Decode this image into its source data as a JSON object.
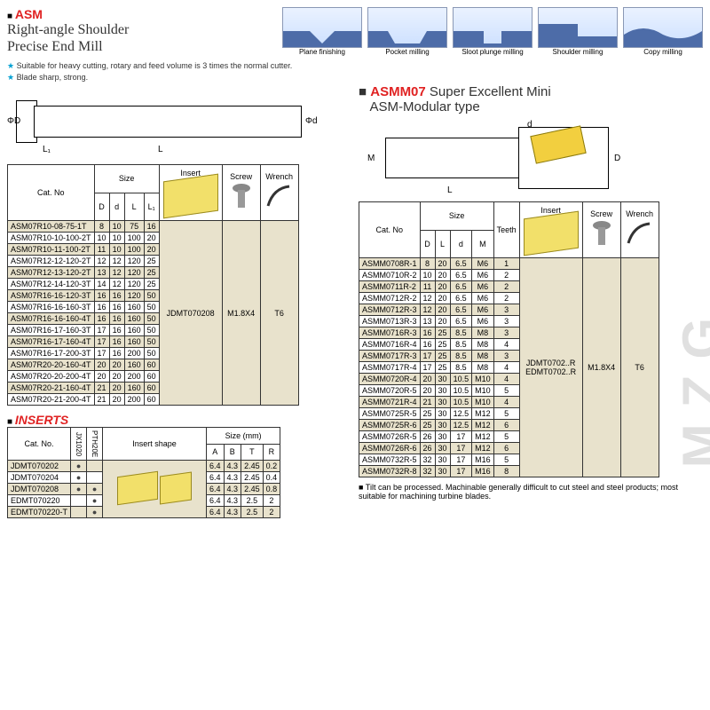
{
  "header": {
    "asm": "ASM",
    "title_l1": "Right-angle Shoulder",
    "title_l2": "Precise End Mill",
    "star1": "Suitable for heavy cutting, rotary and feed volume is 3 times the normal cutter.",
    "star2": "Blade sharp, strong."
  },
  "icons": [
    {
      "label": "Plane finishing"
    },
    {
      "label": "Pocket milling"
    },
    {
      "label": "Sloot plunge milling"
    },
    {
      "label": "Shoulder milling"
    },
    {
      "label": "Copy milling"
    }
  ],
  "left_draw": {
    "phiD": "ΦD",
    "L1": "L₁",
    "L": "L",
    "phid": "Φd"
  },
  "left_table": {
    "headers": {
      "cat": "Cat. No",
      "size": "Size",
      "D": "D",
      "d": "d",
      "L": "L",
      "L1": "L₁",
      "insert": "Insert",
      "screw": "Screw",
      "wrench": "Wrench"
    },
    "rows": [
      {
        "cat": "ASM07R10-08-75-1T",
        "D": "8",
        "d": "10",
        "L": "75",
        "L1": "16"
      },
      {
        "cat": "ASM07R10-10-100-2T",
        "D": "10",
        "d": "10",
        "L": "100",
        "L1": "20"
      },
      {
        "cat": "ASM07R10-11-100-2T",
        "D": "11",
        "d": "10",
        "L": "100",
        "L1": "20"
      },
      {
        "cat": "ASM07R12-12-120-2T",
        "D": "12",
        "d": "12",
        "L": "120",
        "L1": "25"
      },
      {
        "cat": "ASM07R12-13-120-2T",
        "D": "13",
        "d": "12",
        "L": "120",
        "L1": "25"
      },
      {
        "cat": "ASM07R12-14-120-3T",
        "D": "14",
        "d": "12",
        "L": "120",
        "L1": "25"
      },
      {
        "cat": "ASM07R16-16-120-3T",
        "D": "16",
        "d": "16",
        "L": "120",
        "L1": "50"
      },
      {
        "cat": "ASM07R16-16-160-3T",
        "D": "16",
        "d": "16",
        "L": "160",
        "L1": "50"
      },
      {
        "cat": "ASM07R16-16-160-4T",
        "D": "16",
        "d": "16",
        "L": "160",
        "L1": "50"
      },
      {
        "cat": "ASM07R16-17-160-3T",
        "D": "17",
        "d": "16",
        "L": "160",
        "L1": "50"
      },
      {
        "cat": "ASM07R16-17-160-4T",
        "D": "17",
        "d": "16",
        "L": "160",
        "L1": "50"
      },
      {
        "cat": "ASM07R16-17-200-3T",
        "D": "17",
        "d": "16",
        "L": "200",
        "L1": "50"
      },
      {
        "cat": "ASM07R20-20-160-4T",
        "D": "20",
        "d": "20",
        "L": "160",
        "L1": "60"
      },
      {
        "cat": "ASM07R20-20-200-4T",
        "D": "20",
        "d": "20",
        "L": "200",
        "L1": "60"
      },
      {
        "cat": "ASM07R20-21-160-4T",
        "D": "21",
        "d": "20",
        "L": "160",
        "L1": "60"
      },
      {
        "cat": "ASM07R20-21-200-4T",
        "D": "21",
        "d": "20",
        "L": "200",
        "L1": "60"
      }
    ],
    "insert": "JDMT070208",
    "screw": "M1.8X4",
    "wrench": "T6"
  },
  "inserts": {
    "title": "INSERTS",
    "headers": {
      "cat": "Cat. No.",
      "c1": "JX1020",
      "c2": "PTH20E",
      "shape": "Insert shape",
      "size": "Size (mm)",
      "A": "A",
      "B": "B",
      "T": "T",
      "R": "R"
    },
    "rows": [
      {
        "cat": "JDMT070202",
        "c1": "●",
        "c2": "",
        "A": "6.4",
        "B": "4.3",
        "T": "2.45",
        "R": "0.2"
      },
      {
        "cat": "JDMT070204",
        "c1": "●",
        "c2": "",
        "A": "6.4",
        "B": "4.3",
        "T": "2.45",
        "R": "0.4"
      },
      {
        "cat": "JDMT070208",
        "c1": "●",
        "c2": "●",
        "A": "6.4",
        "B": "4.3",
        "T": "2.45",
        "R": "0.8"
      },
      {
        "cat": "EDMT070220",
        "c1": "",
        "c2": "●",
        "A": "6.4",
        "B": "4.3",
        "T": "2.5",
        "R": "2"
      },
      {
        "cat": "EDMT070220-T",
        "c1": "",
        "c2": "●",
        "A": "6.4",
        "B": "4.3",
        "T": "2.5",
        "R": "2"
      }
    ]
  },
  "right": {
    "title_a": "ASMM07",
    "title_b": "Super Excellent Mini",
    "title_c": "ASM-Modular type",
    "draw": {
      "M": "M",
      "d": "d",
      "D": "D",
      "L": "L"
    },
    "headers": {
      "cat": "Cat. No",
      "size": "Size",
      "D": "D",
      "L": "L",
      "d": "d",
      "M": "M",
      "teeth": "Teeth",
      "insert": "Insert",
      "screw": "Screw",
      "wrench": "Wrench"
    },
    "rows": [
      {
        "cat": "ASMM0708R-1",
        "D": "8",
        "L": "20",
        "d": "6.5",
        "M": "M6",
        "t": "1"
      },
      {
        "cat": "ASMM0710R-2",
        "D": "10",
        "L": "20",
        "d": "6.5",
        "M": "M6",
        "t": "2"
      },
      {
        "cat": "ASMM0711R-2",
        "D": "11",
        "L": "20",
        "d": "6.5",
        "M": "M6",
        "t": "2"
      },
      {
        "cat": "ASMM0712R-2",
        "D": "12",
        "L": "20",
        "d": "6.5",
        "M": "M6",
        "t": "2"
      },
      {
        "cat": "ASMM0712R-3",
        "D": "12",
        "L": "20",
        "d": "6.5",
        "M": "M6",
        "t": "3"
      },
      {
        "cat": "ASMM0713R-3",
        "D": "13",
        "L": "20",
        "d": "6.5",
        "M": "M6",
        "t": "3"
      },
      {
        "cat": "ASMM0716R-3",
        "D": "16",
        "L": "25",
        "d": "8.5",
        "M": "M8",
        "t": "3"
      },
      {
        "cat": "ASMM0716R-4",
        "D": "16",
        "L": "25",
        "d": "8.5",
        "M": "M8",
        "t": "4"
      },
      {
        "cat": "ASMM0717R-3",
        "D": "17",
        "L": "25",
        "d": "8.5",
        "M": "M8",
        "t": "3"
      },
      {
        "cat": "ASMM0717R-4",
        "D": "17",
        "L": "25",
        "d": "8.5",
        "M": "M8",
        "t": "4"
      },
      {
        "cat": "ASMM0720R-4",
        "D": "20",
        "L": "30",
        "d": "10.5",
        "M": "M10",
        "t": "4"
      },
      {
        "cat": "ASMM0720R-5",
        "D": "20",
        "L": "30",
        "d": "10.5",
        "M": "M10",
        "t": "5"
      },
      {
        "cat": "ASMM0721R-4",
        "D": "21",
        "L": "30",
        "d": "10.5",
        "M": "M10",
        "t": "4"
      },
      {
        "cat": "ASMM0725R-5",
        "D": "25",
        "L": "30",
        "d": "12.5",
        "M": "M12",
        "t": "5"
      },
      {
        "cat": "ASMM0725R-6",
        "D": "25",
        "L": "30",
        "d": "12.5",
        "M": "M12",
        "t": "6"
      },
      {
        "cat": "ASMM0726R-5",
        "D": "26",
        "L": "30",
        "d": "17",
        "M": "M12",
        "t": "5"
      },
      {
        "cat": "ASMM0726R-6",
        "D": "26",
        "L": "30",
        "d": "17",
        "M": "M12",
        "t": "6"
      },
      {
        "cat": "ASMM0732R-5",
        "D": "32",
        "L": "30",
        "d": "17",
        "M": "M16",
        "t": "5"
      },
      {
        "cat": "ASMM0732R-8",
        "D": "32",
        "L": "30",
        "d": "17",
        "M": "M16",
        "t": "8"
      }
    ],
    "insert_a": "JDMT0702..R",
    "insert_b": "EDMT0702..R",
    "screw": "M1.8X4",
    "wrench": "T6",
    "note": "Tilt can be processed. Machinable generally difficult to cut steel and steel products; most suitable for machining turbine blades."
  },
  "watermark": "MZG",
  "colors": {
    "band_even": "#e8e2cc",
    "accent": "#e02222"
  }
}
